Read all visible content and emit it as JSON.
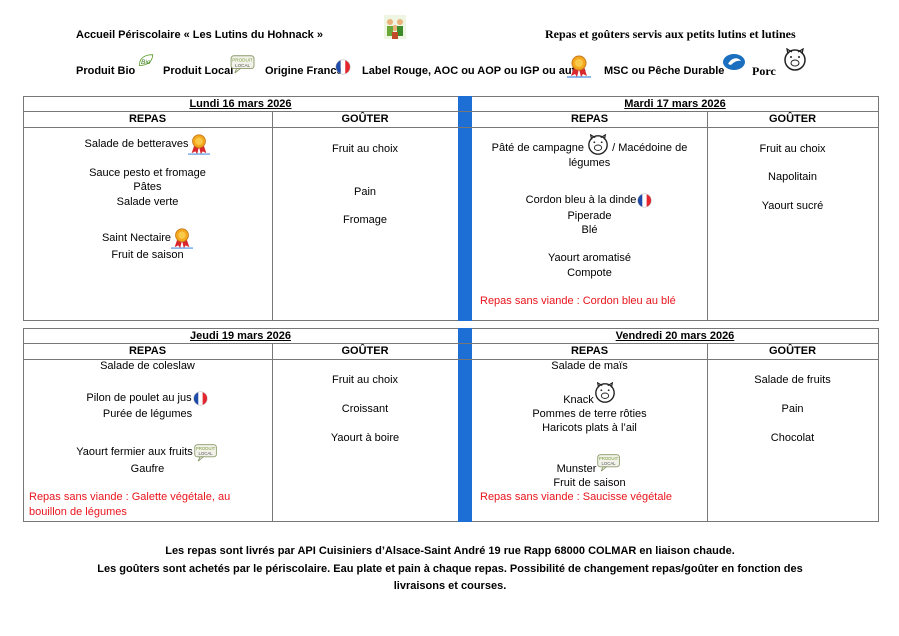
{
  "header": {
    "title": "Accueil Périscolaire « Les Lutins du Hohnack »",
    "subtitle": "Repas et goûters servis aux petits lutins et lutines"
  },
  "legend": [
    "Produit Bio",
    "Produit Local",
    "Origine France",
    "Label Rouge, AOC ou AOP ou IGP ou autre",
    "MSC ou Pêche Durable",
    "Porc"
  ],
  "days": [
    {
      "date": "Lundi 16 mars 2026",
      "repas_label": "REPAS",
      "gouter_label": "GOÛTER",
      "repas": [
        "Salade de betteraves",
        "Sauce pesto et fromage",
        "Pâtes",
        "Salade verte",
        "Saint Nectaire",
        "Fruit de saison"
      ],
      "gouter": [
        "Fruit au choix",
        "Pain",
        "Fromage"
      ]
    },
    {
      "date": "Mardi 17 mars 2026",
      "repas_label": "REPAS",
      "gouter_label": "GOÛTER",
      "repas": [
        "Pâté de campagne",
        "/ Macédoine de légumes",
        "Cordon bleu à la dinde",
        "Piperade",
        "Blé",
        "Yaourt aromatisé",
        "Compote"
      ],
      "sans_viande": "Repas sans viande : Cordon bleu au blé",
      "gouter": [
        "Fruit au choix",
        "Napolitain",
        "Yaourt sucré"
      ]
    },
    {
      "date": "Jeudi 19 mars 2026",
      "repas_label": "REPAS",
      "gouter_label": "GOÛTER",
      "repas": [
        "Salade de coleslaw",
        "Pilon de poulet au jus",
        "Purée de légumes",
        "Yaourt fermier aux fruits",
        "Gaufre"
      ],
      "sans_viande": "Repas sans viande : Galette végétale, au bouillon de légumes",
      "gouter": [
        "Fruit au choix",
        "Croissant",
        "Yaourt à boire"
      ]
    },
    {
      "date": "Vendredi 20 mars 2026",
      "repas_label": "REPAS",
      "gouter_label": "GOÛTER",
      "repas": [
        "Salade de maïs",
        "Knack",
        "Pommes de terre rôties",
        "Haricots plats à l’ail",
        "Munster",
        "Fruit de saison"
      ],
      "sans_viande": "Repas sans viande : Saucisse végétale",
      "gouter": [
        "Salade de fruits",
        "Pain",
        "Chocolat"
      ]
    }
  ],
  "footer": [
    "Les repas sont livrés par API Cuisiniers d’Alsace-Saint André 19 rue Rapp 68000 COLMAR en liaison chaude.",
    "Les goûters sont achetés par le périscolaire. Eau plate et pain à chaque repas. Possibilité de changement repas/goûter en fonction des livraisons et courses."
  ]
}
